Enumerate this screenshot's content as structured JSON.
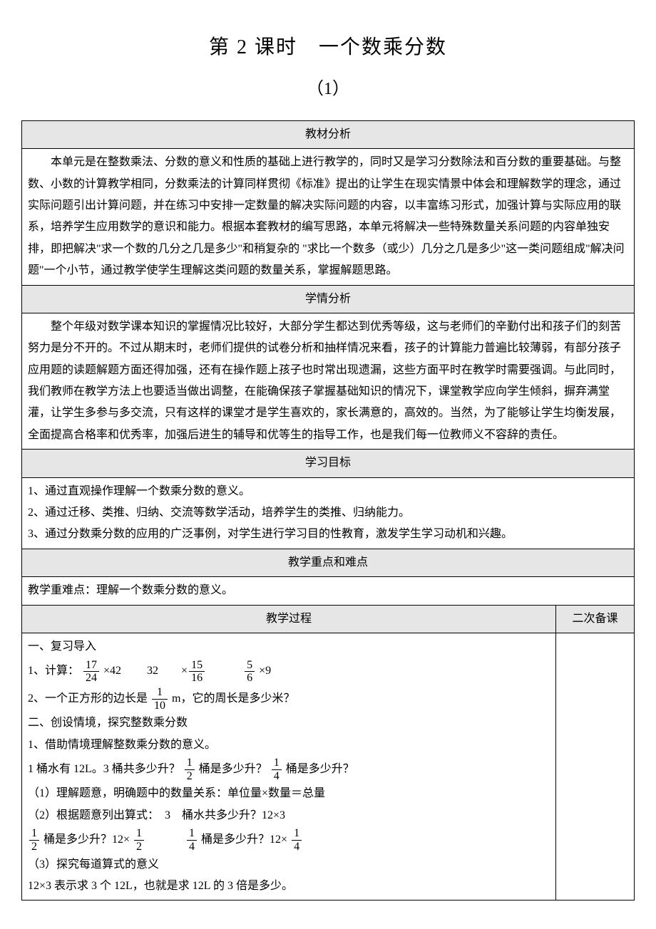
{
  "title": "第 2 课时　一个数乘分数",
  "subtitle": "（1）",
  "sections": {
    "analysis": {
      "header": "教材分析",
      "text": "本单元是在整数乘法、分数的意义和性质的基础上进行教学的，同时又是学习分数除法和百分数的重要基础。与整数、小数的计算教学相同，分数乘法的计算同样贯彻《标准》提出的让学生在现实情景中体会和理解数学的理念，通过实际问题引出计算问题，并在练习中安排一定数量的解决实际问题的内容，以丰富练习形式，加强计算与实际应用的联系，培养学生应用数学的意识和能力。根据本套教材的编写思路，本单元将解决一些特殊数量关系问题的内容单独安排，即把解决\"求一个数的几分之几是多少\"和稍复杂的 \"求比一个数多（或少）几分之几是多少\"这一类问题组成\"解决问题\"一个小节，通过教学使学生理解这类问题的数量关系，掌握解题思路。"
    },
    "students": {
      "header": "学情分析",
      "text": "整个年级对数学课本知识的掌握情况比较好，大部分学生都达到优秀等级，这与老师们的辛勤付出和孩子们的刻苦努力是分不开的。不过从期末时，老师们提供的试卷分析和抽样情况来看，孩子的计算能力普遍比较薄弱，有部分孩子应用题的读题解题方面还得加强，还有在操作题上孩子也时常出现遗漏，这些方面平时在教学时需要强调。与此同时，我们教师在教学方法上也要适当做出调整，在能确保孩子掌握基础知识的情况下，课堂教学应向学生倾斜，摒弃满堂灌，让学生多参与多交流，只有这样的课堂才是学生喜欢的，家长满意的，高效的。当然，为了能够让学生均衡发展，全面提高合格率和优秀率，加强后进生的辅导和优等生的指导工作，也是我们每一位教师义不容辞的责任。"
    },
    "objectives": {
      "header": "学习目标",
      "items": [
        "1、通过直观操作理解一个数乘分数的意义。",
        "2、通过迁移、类推、归纳、交流等数学活动，培养学生的类推、归纳能力。",
        "3、通过分数乘分数的应用的广泛事例，对学生进行学习目的性教育，激发学生学习动机和兴趣。"
      ]
    },
    "keypoints": {
      "header": "教学重点和难点",
      "text": "教学重难点：理解一个数乘分数的意义。"
    },
    "process": {
      "header_main": "教学过程",
      "header_notes": "二次备课",
      "review_heading": "一、复习导入",
      "calc_label": "1、计算：",
      "calc_items": [
        {
          "num": "17",
          "den": "24",
          "tail": " ×42"
        },
        {
          "lead": "　　32　　×",
          "num": "15",
          "den": "16"
        },
        {
          "lead": "　　　",
          "num": "5",
          "den": "6",
          "tail": " ×9"
        }
      ],
      "square_prefix": "2、一个正方形的边长是",
      "square_frac": {
        "num": "1",
        "den": "10"
      },
      "square_suffix": " m，它的周长是多少米？",
      "explore_heading": "二、创设情境，探究整数乘分数",
      "explore_sub1": "1、借助情境理解整数乘分数的意义。",
      "bucket_line_prefix": "1 桶水有 12L。3 桶共多少升？",
      "bucket_frac1": {
        "num": "1",
        "den": "2"
      },
      "bucket_mid1": " 桶是多少升？",
      "bucket_frac2": {
        "num": "1",
        "den": "4"
      },
      "bucket_mid2": " 桶是多少升？",
      "step1": "（1）理解题意，明确题中的数量关系：单位量×数量＝总量",
      "step2": "（2）根据题意列出算式：　3　桶水共多少升？12×3",
      "step2b_frac1": {
        "num": "1",
        "den": "2"
      },
      "step2b_text1": " 桶是多少升？12×",
      "step2b_frac1b": {
        "num": "1",
        "den": "2"
      },
      "step2b_gap": "　　　",
      "step2b_frac2": {
        "num": "1",
        "den": "4"
      },
      "step2b_text2": " 桶是多少升？12×",
      "step2b_frac2b": {
        "num": "1",
        "den": "4"
      },
      "step3": "（3）探究每道算式的意义",
      "step3_line": "12×3 表示求 3 个 12L，也就是求 12L 的 3 倍是多少。"
    }
  }
}
